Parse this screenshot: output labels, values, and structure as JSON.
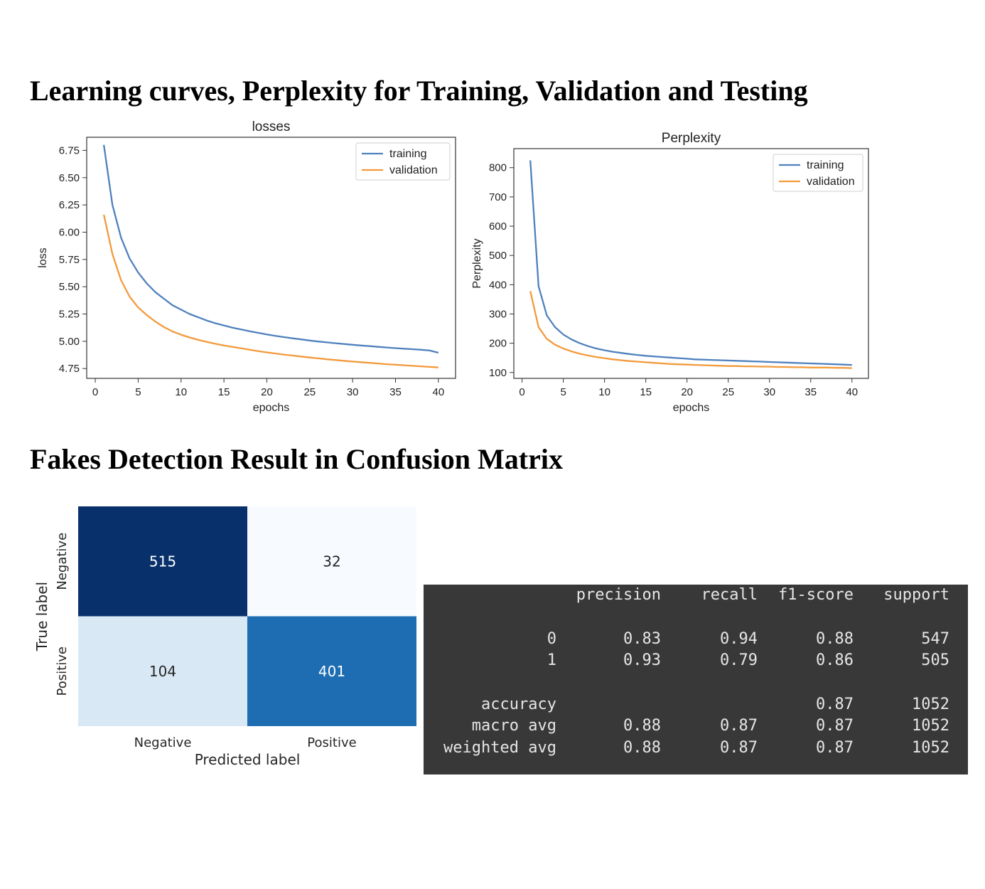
{
  "headings": {
    "learning": "Learning curves, Perplexity for Training, Validation and Testing",
    "confusion": "Fakes Detection Result in Confusion Matrix"
  },
  "chart_data": [
    {
      "type": "line",
      "title": "losses",
      "xlabel": "epochs",
      "ylabel": "loss",
      "xlim": [
        -1,
        42
      ],
      "ylim": [
        4.66,
        6.87
      ],
      "xticks": [
        0,
        5,
        10,
        15,
        20,
        25,
        30,
        35,
        40
      ],
      "yticks": [
        4.75,
        5.0,
        5.25,
        5.5,
        5.75,
        6.0,
        6.25,
        6.5,
        6.75
      ],
      "ytick_labels": [
        "4.75",
        "5.00",
        "5.25",
        "5.50",
        "5.75",
        "6.00",
        "6.25",
        "6.50",
        "6.75"
      ],
      "legend": "top-right",
      "grid": false,
      "x": [
        1,
        2,
        3,
        4,
        5,
        6,
        7,
        8,
        9,
        10,
        11,
        12,
        13,
        14,
        15,
        16,
        17,
        18,
        19,
        20,
        21,
        22,
        23,
        24,
        25,
        26,
        27,
        28,
        29,
        30,
        31,
        32,
        33,
        34,
        35,
        36,
        37,
        38,
        39,
        40
      ],
      "series": [
        {
          "name": "training",
          "color": "#4f81bd",
          "values": [
            6.8,
            6.25,
            5.95,
            5.76,
            5.63,
            5.53,
            5.45,
            5.39,
            5.33,
            5.29,
            5.25,
            5.22,
            5.19,
            5.165,
            5.145,
            5.125,
            5.108,
            5.092,
            5.077,
            5.063,
            5.05,
            5.038,
            5.027,
            5.017,
            5.007,
            4.998,
            4.99,
            4.982,
            4.975,
            4.968,
            4.961,
            4.955,
            4.949,
            4.943,
            4.937,
            4.932,
            4.927,
            4.922,
            4.915,
            4.895
          ]
        },
        {
          "name": "validation",
          "color": "#f39a3b",
          "values": [
            6.16,
            5.8,
            5.56,
            5.41,
            5.31,
            5.24,
            5.18,
            5.13,
            5.09,
            5.06,
            5.035,
            5.013,
            4.994,
            4.977,
            4.962,
            4.948,
            4.935,
            4.922,
            4.91,
            4.898,
            4.888,
            4.878,
            4.869,
            4.86,
            4.851,
            4.843,
            4.835,
            4.828,
            4.821,
            4.814,
            4.808,
            4.802,
            4.796,
            4.79,
            4.785,
            4.78,
            4.775,
            4.77,
            4.765,
            4.76
          ]
        }
      ]
    },
    {
      "type": "line",
      "title": "Perplexity",
      "xlabel": "epochs",
      "ylabel": "Perplexity",
      "xlim": [
        -1,
        42
      ],
      "ylim": [
        80,
        865
      ],
      "xticks": [
        0,
        5,
        10,
        15,
        20,
        25,
        30,
        35,
        40
      ],
      "yticks": [
        100,
        200,
        300,
        400,
        500,
        600,
        700,
        800
      ],
      "ytick_labels": [
        "100",
        "200",
        "300",
        "400",
        "500",
        "600",
        "700",
        "800"
      ],
      "legend": "top-right",
      "grid": false,
      "x": [
        1,
        2,
        3,
        4,
        5,
        6,
        7,
        8,
        9,
        10,
        11,
        12,
        13,
        14,
        15,
        16,
        17,
        18,
        19,
        20,
        21,
        22,
        23,
        24,
        25,
        26,
        27,
        28,
        29,
        30,
        31,
        32,
        33,
        34,
        35,
        36,
        37,
        38,
        39,
        40
      ],
      "series": [
        {
          "name": "training",
          "color": "#4f81bd",
          "values": [
            825,
            395,
            295,
            255,
            230,
            213,
            200,
            190,
            182,
            176,
            171,
            167,
            163,
            160,
            157,
            155,
            153,
            151,
            149,
            147,
            145,
            144,
            143,
            142,
            141,
            140,
            139,
            138,
            137,
            136,
            135,
            134,
            133,
            132,
            131,
            130,
            129,
            128,
            127,
            126
          ]
        },
        {
          "name": "validation",
          "color": "#f39a3b",
          "values": [
            378,
            255,
            215,
            195,
            182,
            172,
            164,
            158,
            153,
            149,
            145,
            142,
            139,
            137,
            135,
            133,
            131,
            129,
            128,
            127,
            126,
            125,
            124,
            123,
            122,
            122,
            121,
            121,
            120,
            120,
            119,
            119,
            118,
            118,
            117,
            117,
            117,
            116,
            116,
            115
          ]
        }
      ]
    },
    {
      "type": "heatmap",
      "title": "",
      "xlabel": "Predicted label",
      "ylabel": "True label",
      "x_categories": [
        "Negative",
        "Positive"
      ],
      "y_categories": [
        "Negative",
        "Positive"
      ],
      "values": [
        [
          515,
          32
        ],
        [
          104,
          401
        ]
      ],
      "colormap": [
        "#f7fbff",
        "#08306b"
      ],
      "cell_text_dark": "#262626",
      "cell_text_light": "#ffffff",
      "vmin": 32,
      "vmax": 515
    },
    {
      "type": "table",
      "title": "",
      "columns": [
        "",
        "precision",
        "recall",
        "f1-score",
        "support"
      ],
      "rows": [
        [
          "0",
          "0.83",
          "0.94",
          "0.88",
          "547"
        ],
        [
          "1",
          "0.93",
          "0.79",
          "0.86",
          "505"
        ],
        [
          "accuracy",
          "",
          "",
          "0.87",
          "1052"
        ],
        [
          "macro avg",
          "0.88",
          "0.87",
          "0.87",
          "1052"
        ],
        [
          "weighted avg",
          "0.88",
          "0.87",
          "0.87",
          "1052"
        ]
      ]
    }
  ]
}
